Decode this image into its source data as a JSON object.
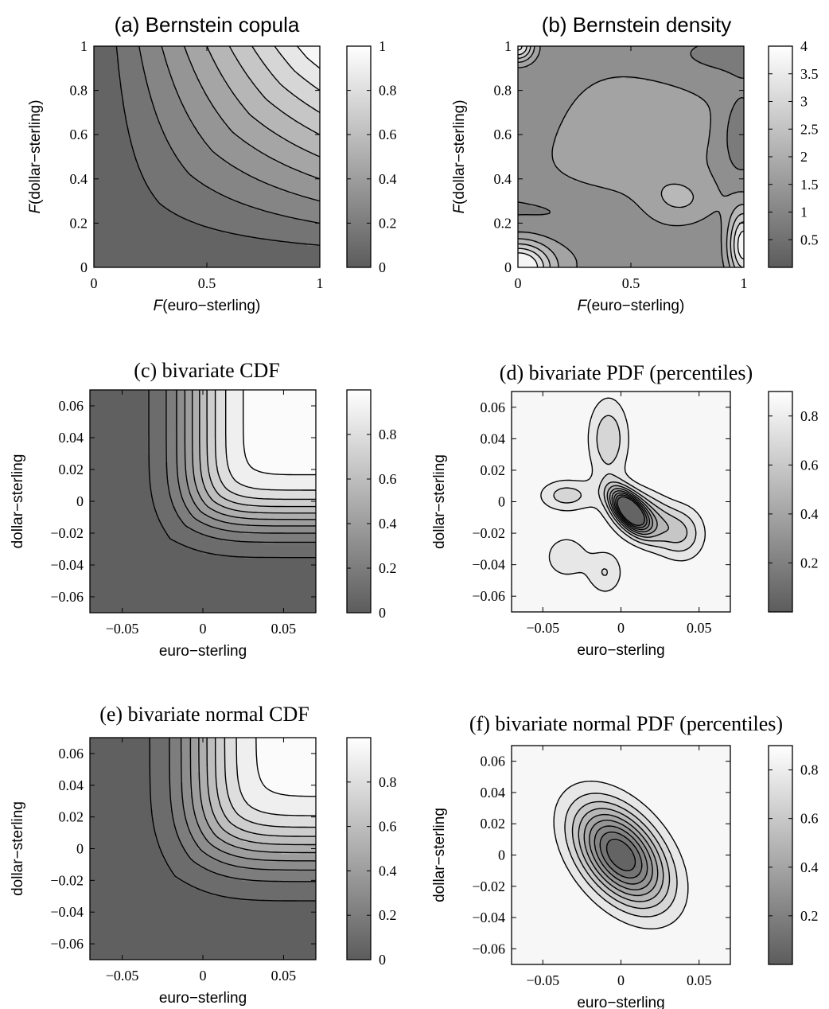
{
  "chart_data": [
    {
      "id": "a",
      "type": "contour",
      "title": "(a) Bernstein copula",
      "xlabel": [
        "F",
        "(euro−sterling)"
      ],
      "ylabel": [
        "F",
        "(dollar−sterling)"
      ],
      "xlim": [
        0,
        1
      ],
      "ylim": [
        0,
        1
      ],
      "xticks": [
        "0",
        "0.5",
        "1"
      ],
      "yticks": [
        "0",
        "0.2",
        "0.4",
        "0.6",
        "0.8",
        "1"
      ],
      "colorbar_ticks": [
        "0",
        "0.2",
        "0.4",
        "0.6",
        "0.8",
        "1"
      ],
      "colorbar_range": [
        0,
        1
      ],
      "contour_levels": [
        0.1,
        0.2,
        0.3,
        0.4,
        0.5,
        0.6,
        0.7,
        0.8,
        0.9
      ]
    },
    {
      "id": "b",
      "type": "contour",
      "title": "(b) Bernstein density",
      "xlabel": [
        "F",
        "(euro−sterling)"
      ],
      "ylabel": [
        "F",
        "(dollar−sterling)"
      ],
      "xlim": [
        0,
        1
      ],
      "ylim": [
        0,
        1
      ],
      "xticks": [
        "0",
        "0.5",
        "1"
      ],
      "yticks": [
        "0",
        "0.2",
        "0.4",
        "0.6",
        "0.8",
        "1"
      ],
      "colorbar_ticks": [
        "0.5",
        "1",
        "1.5",
        "2",
        "2.5",
        "3",
        "3.5",
        "4"
      ],
      "colorbar_range": [
        0,
        4
      ]
    },
    {
      "id": "c",
      "type": "contour",
      "title": "(c) bivariate CDF",
      "xlabel": [
        "",
        "euro−sterling"
      ],
      "ylabel": [
        "",
        "dollar−sterling"
      ],
      "xlim": [
        -0.07,
        0.07
      ],
      "ylim": [
        -0.07,
        0.07
      ],
      "xticks": [
        "−0.05",
        "0",
        "0.05"
      ],
      "yticks": [
        "−0.06",
        "−0.04",
        "−0.02",
        "0",
        "0.02",
        "0.04",
        "0.06"
      ],
      "colorbar_ticks": [
        "0",
        "0.2",
        "0.4",
        "0.6",
        "0.8"
      ],
      "colorbar_range": [
        0,
        1
      ]
    },
    {
      "id": "d",
      "type": "contour",
      "title": "(d) bivariate PDF (percentiles)",
      "xlabel": [
        "",
        "euro−sterling"
      ],
      "ylabel": [
        "",
        "dollar−sterling"
      ],
      "xlim": [
        -0.07,
        0.07
      ],
      "ylim": [
        -0.07,
        0.07
      ],
      "xticks": [
        "−0.05",
        "0",
        "0.05"
      ],
      "yticks": [
        "−0.06",
        "−0.04",
        "−0.02",
        "0",
        "0.02",
        "0.04",
        "0.06"
      ],
      "colorbar_ticks": [
        "0.2",
        "0.4",
        "0.6",
        "0.8"
      ],
      "colorbar_range": [
        0,
        0.9
      ]
    },
    {
      "id": "e",
      "type": "contour",
      "title": "(e) bivariate normal CDF",
      "xlabel": [
        "",
        "euro−sterling"
      ],
      "ylabel": [
        "",
        "dollar−sterling"
      ],
      "xlim": [
        -0.07,
        0.07
      ],
      "ylim": [
        -0.07,
        0.07
      ],
      "xticks": [
        "−0.05",
        "0",
        "0.05"
      ],
      "yticks": [
        "−0.06",
        "−0.04",
        "−0.02",
        "0",
        "0.02",
        "0.04",
        "0.06"
      ],
      "colorbar_ticks": [
        "0",
        "0.2",
        "0.4",
        "0.6",
        "0.8"
      ],
      "colorbar_range": [
        0,
        1
      ]
    },
    {
      "id": "f",
      "type": "contour",
      "title": "(f) bivariate normal PDF (percentiles)",
      "xlabel": [
        "",
        "euro−sterling"
      ],
      "ylabel": [
        "",
        "dollar−sterling"
      ],
      "xlim": [
        -0.07,
        0.07
      ],
      "ylim": [
        -0.07,
        0.07
      ],
      "xticks": [
        "−0.05",
        "0",
        "0.05"
      ],
      "yticks": [
        "−0.06",
        "−0.04",
        "−0.02",
        "0",
        "0.02",
        "0.04",
        "0.06"
      ],
      "colorbar_ticks": [
        "0.2",
        "0.4",
        "0.6",
        "0.8"
      ],
      "colorbar_range": [
        0,
        0.9
      ],
      "normal_params": {
        "mu_x": 0.0,
        "mu_y": 0.0,
        "sd_x": 0.02,
        "sd_y": 0.022,
        "rho": -0.45
      }
    }
  ],
  "colors": {
    "dark": "#5c5c5c",
    "light": "#ffffff",
    "line": "#000000"
  }
}
